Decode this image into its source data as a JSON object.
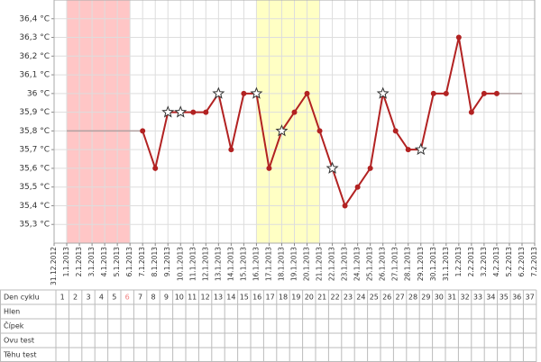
{
  "chart_data": {
    "type": "line",
    "x": [
      "31.12.2012",
      "1.1.2013",
      "2.1.2013",
      "3.1.2013",
      "4.1.2013",
      "5.1.2013",
      "6.1.2013",
      "7.1.2013",
      "8.1.2013",
      "9.1.2013",
      "10.1.2013",
      "11.1.2013",
      "12.1.2013",
      "13.1.2013",
      "14.1.2013",
      "15.1.2013",
      "16.1.2013",
      "17.1.2013",
      "18.1.2013",
      "19.1.2013",
      "20.1.2013",
      "21.1.2013",
      "22.1.2013",
      "23.1.2013",
      "24.1.2013",
      "25.1.2013",
      "26.1.2013",
      "27.1.2013",
      "28.1.2013",
      "29.1.2013",
      "30.1.2013",
      "31.1.2013",
      "1.2.2013",
      "2.2.2013",
      "3.2.2013",
      "4.2.2013",
      "5.2.2013",
      "6.2.2013",
      "7.2.2013"
    ],
    "series": [
      {
        "color": "#b0a0a0",
        "values": [
          null,
          35.8,
          35.8,
          35.8,
          35.8,
          35.8,
          35.8,
          35.8,
          null,
          null,
          null,
          null,
          null,
          null,
          null,
          null,
          null,
          null,
          null,
          null,
          null,
          null,
          null,
          null,
          null,
          null,
          null,
          null,
          null,
          null,
          null,
          null,
          null,
          null,
          null,
          36.0,
          36.0,
          36.0,
          null
        ]
      },
      {
        "color": "#b22222",
        "values": [
          null,
          null,
          null,
          null,
          null,
          null,
          null,
          35.8,
          35.6,
          35.9,
          35.9,
          35.9,
          35.9,
          36.0,
          35.7,
          36.0,
          36.0,
          35.6,
          35.8,
          35.9,
          36.0,
          35.8,
          35.6,
          35.4,
          35.5,
          35.6,
          36.0,
          35.8,
          35.7,
          35.7,
          36.0,
          36.0,
          36.3,
          35.9,
          36.0,
          36.0,
          null,
          null,
          null
        ],
        "markers": [
          null,
          null,
          null,
          null,
          null,
          null,
          null,
          "dot",
          "dot",
          "star",
          "star",
          "dot",
          "dot",
          "star",
          "dot",
          "dot",
          "star",
          "dot",
          "star",
          "dot",
          "dot",
          "dot",
          "star",
          "dot",
          "dot",
          "dot",
          "star",
          "dot",
          "dot",
          "star",
          "dot",
          "dot",
          "dot",
          "dot",
          "dot",
          "dot",
          null,
          null,
          null
        ]
      }
    ],
    "bands": [
      {
        "from": "1.1.2013",
        "to": "6.1.2013",
        "color": "#ffc6c6"
      },
      {
        "from": "16.1.2013",
        "to": "21.1.2013",
        "color": "#ffffc4"
      }
    ],
    "ylim": [
      35.2,
      36.5
    ],
    "yticks": [
      {
        "value": 35.3,
        "label": "35,3 °C"
      },
      {
        "value": 35.4,
        "label": "35,4 °C"
      },
      {
        "value": 35.5,
        "label": "35,5 °C"
      },
      {
        "value": 35.6,
        "label": "35,6 °C"
      },
      {
        "value": 35.7,
        "label": "35,7 °C"
      },
      {
        "value": 35.8,
        "label": "35,8 °C"
      },
      {
        "value": 35.9,
        "label": "35,9 °C"
      },
      {
        "value": 36,
        "label": "36 °C"
      },
      {
        "value": 36.1,
        "label": "36,1 °C"
      },
      {
        "value": 36.2,
        "label": "36,2 °C"
      },
      {
        "value": 36.3,
        "label": "36,3 °C"
      },
      {
        "value": 36.4,
        "label": "36,4 °C"
      }
    ],
    "grid": true
  },
  "cycle_table": {
    "row_labels": [
      "Den cyklu",
      "Hlen",
      "Čípek",
      "Ovu test",
      "Těhu test"
    ],
    "days": [
      1,
      2,
      3,
      4,
      5,
      6,
      7,
      8,
      9,
      10,
      11,
      12,
      13,
      14,
      15,
      16,
      17,
      18,
      19,
      20,
      21,
      22,
      23,
      24,
      25,
      26,
      27,
      28,
      29,
      30,
      31,
      32,
      33,
      34,
      35,
      36,
      37
    ],
    "highlight_day": 6,
    "highlight_color": "#f08080"
  }
}
